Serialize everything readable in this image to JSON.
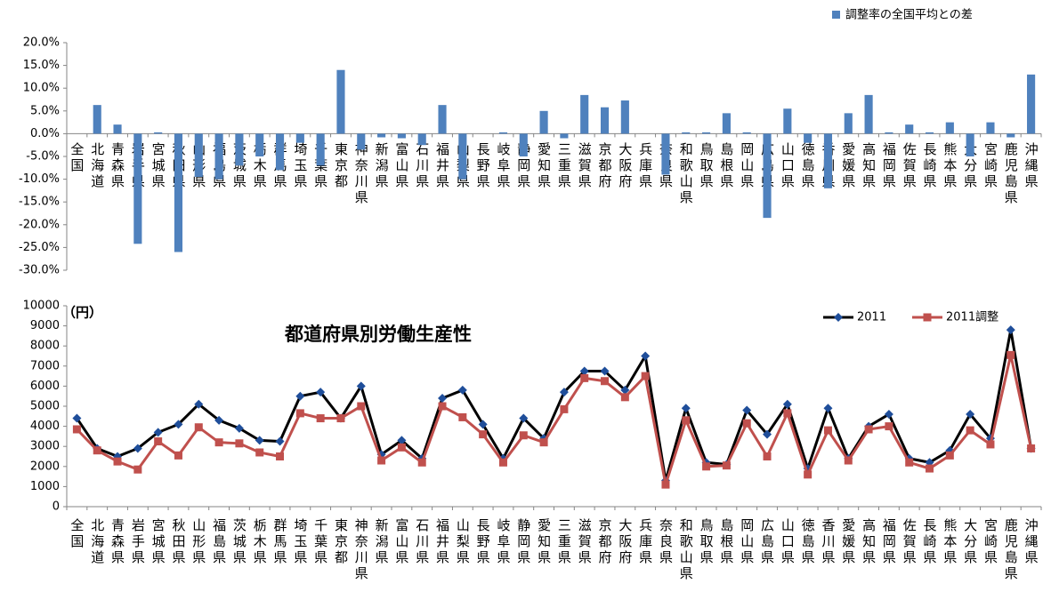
{
  "chart_data": [
    {
      "type": "bar",
      "categories": [
        "全国",
        "北海道",
        "青森県",
        "岩手県",
        "宮城県",
        "秋田県",
        "山形県",
        "福島県",
        "茨城県",
        "栃木県",
        "群馬県",
        "埼玉県",
        "千葉県",
        "東京都",
        "神奈川県",
        "新潟県",
        "富山県",
        "石川県",
        "福井県",
        "山梨県",
        "長野県",
        "岐阜県",
        "静岡県",
        "愛知県",
        "三重県",
        "滋賀県",
        "京都府",
        "大阪府",
        "兵庫県",
        "奈良県",
        "和歌山県",
        "鳥取県",
        "島根県",
        "岡山県",
        "広島県",
        "山口県",
        "徳島県",
        "香川県",
        "愛媛県",
        "高知県",
        "福岡県",
        "佐賀県",
        "長崎県",
        "熊本県",
        "大分県",
        "宮崎県",
        "鹿児島県",
        "沖縄県"
      ],
      "series": [
        {
          "name": "調整率の全国平均との差",
          "color": "#4f81bd",
          "values": [
            0,
            6.3,
            2.0,
            -24.2,
            0.3,
            -26.0,
            -9.5,
            -10.0,
            -7.0,
            -5.0,
            -8.0,
            -2.0,
            -7.0,
            14.0,
            -3.5,
            -0.8,
            -1.0,
            -2.5,
            6.3,
            -10.0,
            0,
            0.3,
            -5.0,
            5.0,
            -1.0,
            8.5,
            5.8,
            7.3,
            0,
            -9.0,
            0.3,
            0.3,
            4.5,
            0.3,
            -18.5,
            5.5,
            -2.0,
            -12.0,
            4.5,
            8.5,
            0.3,
            2.0,
            0.3,
            2.5,
            -5.0,
            2.5,
            -0.8,
            13.0
          ]
        }
      ],
      "ylim": [
        -30,
        20
      ],
      "yticks": [
        {
          "value": -30,
          "label": "-30.0%"
        },
        {
          "value": -25,
          "label": "-25.0%"
        },
        {
          "value": -20,
          "label": "-20.0%"
        },
        {
          "value": -15,
          "label": "-15.0%"
        },
        {
          "value": -10,
          "label": "-10.0%"
        },
        {
          "value": -5,
          "label": "-5.0%"
        },
        {
          "value": 0,
          "label": "0.0%"
        },
        {
          "value": 5,
          "label": "5.0%"
        },
        {
          "value": 10,
          "label": "10.0%"
        },
        {
          "value": 15,
          "label": "15.0%"
        },
        {
          "value": 20,
          "label": "20.0%"
        }
      ],
      "grid": false,
      "legend": "top-right"
    },
    {
      "type": "line",
      "title": "都道府県別労働生産性",
      "y_label": "（円）",
      "categories": [
        "全国",
        "北海道",
        "青森県",
        "岩手県",
        "宮城県",
        "秋田県",
        "山形県",
        "福島県",
        "茨城県",
        "栃木県",
        "群馬県",
        "埼玉県",
        "千葉県",
        "東京都",
        "神奈川県",
        "新潟県",
        "富山県",
        "石川県",
        "福井県",
        "山梨県",
        "長野県",
        "岐阜県",
        "静岡県",
        "愛知県",
        "三重県",
        "滋賀県",
        "京都府",
        "大阪府",
        "兵庫県",
        "奈良県",
        "和歌山県",
        "鳥取県",
        "島根県",
        "岡山県",
        "広島県",
        "山口県",
        "徳島県",
        "香川県",
        "愛媛県",
        "高知県",
        "福岡県",
        "佐賀県",
        "長崎県",
        "熊本県",
        "大分県",
        "宮崎県",
        "鹿児島県",
        "沖縄県"
      ],
      "series": [
        {
          "name": "2011",
          "color": "#000000",
          "marker": "diamond",
          "marker_color": "#1f4e9a",
          "values": [
            4400,
            2900,
            2500,
            2900,
            3700,
            4100,
            5100,
            4300,
            3900,
            3300,
            3250,
            5500,
            5700,
            4400,
            6000,
            2600,
            3300,
            2400,
            5400,
            5800,
            4100,
            2400,
            4400,
            3400,
            5700,
            6750,
            6750,
            5800,
            7500,
            1300,
            4900,
            2200,
            2100,
            4800,
            3600,
            5100,
            1900,
            4900,
            2400,
            4000,
            4600,
            2400,
            2200,
            2800,
            4600,
            3400,
            8800,
            2900
          ]
        },
        {
          "name": "2011調整",
          "color": "#c0504d",
          "marker": "square",
          "marker_color": "#c0504d",
          "values": [
            3850,
            2800,
            2250,
            1850,
            3250,
            2550,
            3950,
            3200,
            3150,
            2700,
            2500,
            4650,
            4400,
            4400,
            5000,
            2300,
            2950,
            2200,
            5000,
            4450,
            3600,
            2200,
            3550,
            3200,
            4850,
            6400,
            6250,
            5450,
            6500,
            1100,
            4300,
            2000,
            2050,
            4150,
            2500,
            4650,
            1600,
            3800,
            2300,
            3850,
            4000,
            2200,
            1900,
            2550,
            3800,
            3100,
            7550,
            2900
          ]
        }
      ],
      "ylim": [
        0,
        10000
      ],
      "yticks": [
        0,
        1000,
        2000,
        3000,
        4000,
        5000,
        6000,
        7000,
        8000,
        9000,
        10000
      ],
      "grid": false,
      "legend": "top-right"
    }
  ]
}
